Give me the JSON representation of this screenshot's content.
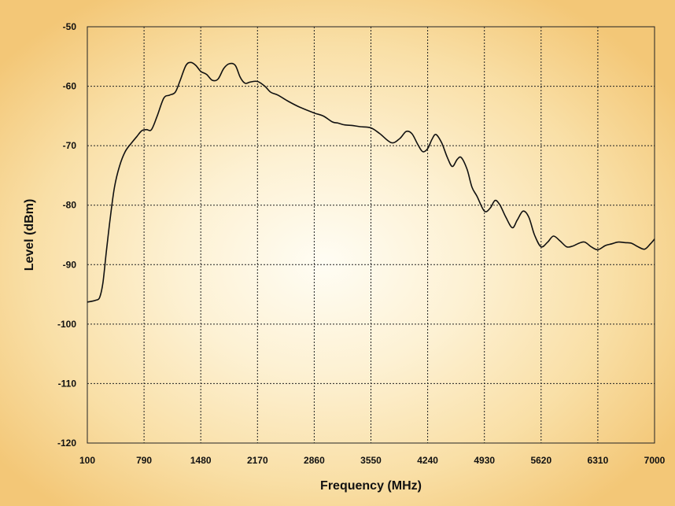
{
  "chart_data": {
    "type": "line",
    "title": "",
    "xlabel": "Frequency (MHz)",
    "ylabel": "Level (dBm)",
    "xlim": [
      100,
      7000
    ],
    "ylim": [
      -120,
      -50
    ],
    "x_ticks": [
      "100",
      "790",
      "1480",
      "2170",
      "2860",
      "3550",
      "4240",
      "4930",
      "5620",
      "6310",
      "7000"
    ],
    "y_ticks": [
      "-50",
      "-60",
      "-70",
      "-80",
      "-90",
      "-100",
      "-110",
      "-120"
    ],
    "grid": true,
    "line_color": "#111111",
    "series": [
      {
        "name": "",
        "x": [
          100,
          200,
          250,
          290,
          330,
          380,
          430,
          490,
          560,
          640,
          700,
          760,
          820,
          880,
          950,
          1030,
          1100,
          1170,
          1230,
          1300,
          1360,
          1420,
          1480,
          1550,
          1620,
          1690,
          1760,
          1830,
          1900,
          1960,
          2020,
          2080,
          2170,
          2260,
          2330,
          2420,
          2540,
          2680,
          2860,
          2970,
          3080,
          3150,
          3230,
          3320,
          3420,
          3550,
          3660,
          3800,
          3900,
          3980,
          4050,
          4120,
          4180,
          4240,
          4290,
          4340,
          4410,
          4480,
          4540,
          4600,
          4650,
          4720,
          4780,
          4840,
          4930,
          5000,
          5060,
          5120,
          5190,
          5270,
          5330,
          5400,
          5470,
          5540,
          5620,
          5700,
          5770,
          5850,
          5930,
          6000,
          6080,
          6150,
          6230,
          6310,
          6400,
          6480,
          6560,
          6640,
          6720,
          6800,
          6880,
          6950,
          7000
        ],
        "y": [
          -96.3,
          -96,
          -95.5,
          -93,
          -88,
          -82,
          -77,
          -73.5,
          -71,
          -69.5,
          -68.5,
          -67.5,
          -67.3,
          -67.3,
          -65,
          -62,
          -61.5,
          -61,
          -59,
          -56.5,
          -56,
          -56.5,
          -57.5,
          -58,
          -59,
          -58.8,
          -57,
          -56.2,
          -56.5,
          -58.5,
          -59.5,
          -59.3,
          -59.2,
          -60,
          -61,
          -61.5,
          -62.5,
          -63.5,
          -64.5,
          -65,
          -66,
          -66.2,
          -66.5,
          -66.6,
          -66.8,
          -67,
          -68,
          -69.5,
          -68.8,
          -67.6,
          -68,
          -69.8,
          -71,
          -70.5,
          -69,
          -68.1,
          -69.5,
          -72,
          -73.5,
          -72.3,
          -72,
          -74,
          -77,
          -78.5,
          -81,
          -80.5,
          -79.2,
          -80,
          -82,
          -83.8,
          -82.5,
          -81,
          -82,
          -85,
          -87,
          -86.2,
          -85.2,
          -86,
          -87,
          -86.9,
          -86.4,
          -86.2,
          -87,
          -87.5,
          -86.8,
          -86.5,
          -86.2,
          -86.3,
          -86.4,
          -87,
          -87.4,
          -86.5,
          -85.7
        ]
      }
    ]
  }
}
